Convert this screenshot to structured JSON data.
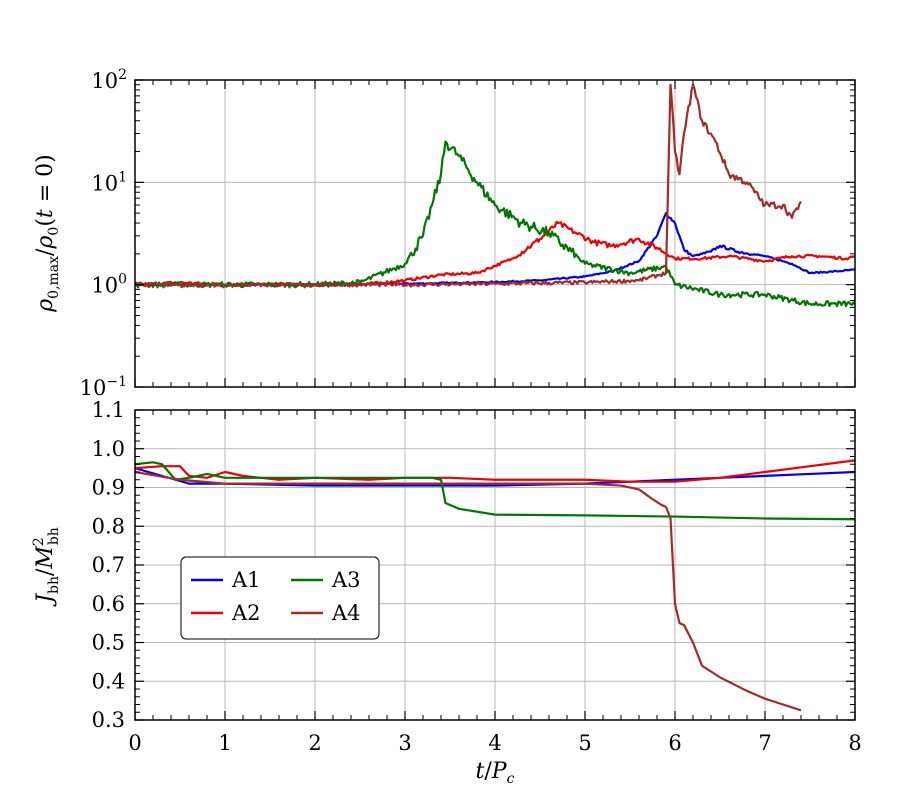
{
  "chart_data": [
    {
      "type": "line",
      "panel": "top",
      "yscale": "log",
      "xlim": [
        0,
        8
      ],
      "ylim": [
        0.1,
        100
      ],
      "grid": true,
      "ylabel": "ρ0,max/ρ0(t = 0)",
      "xticks": [
        0,
        1,
        2,
        3,
        4,
        5,
        6,
        7,
        8
      ],
      "yticks": [
        {
          "value": 0.1,
          "base": "10",
          "exp": "−1"
        },
        {
          "value": 1,
          "base": "10",
          "exp": "0"
        },
        {
          "value": 10,
          "base": "10",
          "exp": "1"
        },
        {
          "value": 100,
          "base": "10",
          "exp": "2"
        }
      ],
      "series": [
        {
          "name": "A1",
          "color": "#0000ee",
          "noise": 0.015,
          "x": [
            0,
            1,
            2,
            3,
            3.5,
            4,
            4.5,
            5,
            5.3,
            5.6,
            5.8,
            5.9,
            6.0,
            6.1,
            6.2,
            6.4,
            6.5,
            6.7,
            7.0,
            7.3,
            7.5,
            7.8,
            8.0
          ],
          "y": [
            1.0,
            1.0,
            1.0,
            1.02,
            1.04,
            1.06,
            1.1,
            1.2,
            1.35,
            1.7,
            3.0,
            5.0,
            4.0,
            2.2,
            1.9,
            2.1,
            2.4,
            2.1,
            1.9,
            1.6,
            1.3,
            1.35,
            1.4
          ]
        },
        {
          "name": "A2",
          "color": "#ee0000",
          "noise": 0.03,
          "x": [
            0,
            0.5,
            1,
            2,
            2.5,
            3.0,
            3.4,
            3.8,
            4.2,
            4.5,
            4.7,
            4.9,
            5.1,
            5.3,
            5.6,
            5.8,
            6.0,
            6.3,
            6.6,
            7.0,
            7.3,
            7.6,
            7.9,
            8.0
          ],
          "y": [
            1.0,
            1.05,
            1.0,
            1.0,
            1.0,
            1.1,
            1.25,
            1.3,
            1.8,
            2.8,
            4.0,
            3.2,
            2.6,
            2.4,
            2.8,
            2.3,
            1.8,
            1.8,
            1.9,
            1.7,
            1.9,
            1.9,
            1.8,
            1.9
          ]
        },
        {
          "name": "A3",
          "color": "#007700",
          "noise": 0.06,
          "x": [
            0,
            1,
            2,
            2.5,
            3.0,
            3.2,
            3.3,
            3.4,
            3.45,
            3.6,
            3.8,
            4.0,
            4.3,
            4.6,
            5.0,
            5.5,
            5.9,
            6.0,
            6.5,
            7.0,
            7.5,
            8.0
          ],
          "y": [
            1.0,
            1.0,
            1.0,
            1.05,
            1.6,
            3.0,
            6.0,
            12.0,
            25.0,
            18.0,
            10.0,
            6.0,
            4.0,
            3.2,
            1.6,
            1.3,
            1.5,
            1.0,
            0.8,
            0.8,
            0.65,
            0.65
          ]
        },
        {
          "name": "A4",
          "color": "#a52a2a",
          "noise": 0.04,
          "x": [
            0,
            1,
            2,
            3,
            4,
            5,
            5.6,
            5.9,
            5.95,
            6.0,
            6.05,
            6.1,
            6.2,
            6.3,
            6.45,
            6.6,
            6.8,
            7.0,
            7.2,
            7.3,
            7.4
          ],
          "y": [
            1.0,
            1.0,
            1.0,
            1.0,
            1.02,
            1.05,
            1.1,
            1.3,
            90.0,
            20.0,
            12.0,
            30.0,
            90.0,
            40.0,
            25.0,
            12.0,
            10.0,
            6.0,
            6.0,
            4.5,
            6.5
          ]
        }
      ]
    },
    {
      "type": "line",
      "panel": "bottom",
      "yscale": "linear",
      "xlim": [
        0,
        8
      ],
      "ylim": [
        0.3,
        1.1
      ],
      "grid": true,
      "xlabel": "t/Pc",
      "ylabel": "Jbh/M2bh",
      "xticks": [
        0,
        1,
        2,
        3,
        4,
        5,
        6,
        7,
        8
      ],
      "yticks": [
        0.3,
        0.4,
        0.5,
        0.6,
        0.7,
        0.8,
        0.9,
        1.0,
        1.1
      ],
      "legend": "lower-left",
      "series": [
        {
          "name": "A1",
          "color": "#0000ee",
          "x": [
            0,
            0.3,
            0.6,
            1,
            2,
            3,
            4,
            5,
            5.5,
            6,
            6.5,
            7,
            7.5,
            8
          ],
          "y": [
            0.95,
            0.93,
            0.91,
            0.91,
            0.905,
            0.905,
            0.905,
            0.91,
            0.915,
            0.92,
            0.925,
            0.93,
            0.935,
            0.94
          ]
        },
        {
          "name": "A2",
          "color": "#ee0000",
          "x": [
            0,
            0.3,
            0.5,
            0.6,
            0.8,
            1.0,
            1.2,
            1.6,
            2.0,
            2.6,
            3.0,
            3.5,
            4.0,
            5.0,
            5.5,
            6.0,
            6.5,
            7.0,
            7.5,
            8.0
          ],
          "y": [
            0.95,
            0.955,
            0.955,
            0.93,
            0.925,
            0.94,
            0.93,
            0.92,
            0.925,
            0.92,
            0.925,
            0.925,
            0.92,
            0.92,
            0.915,
            0.915,
            0.925,
            0.94,
            0.955,
            0.97
          ]
        },
        {
          "name": "A3",
          "color": "#007700",
          "x": [
            0,
            0.2,
            0.3,
            0.45,
            0.6,
            0.8,
            1.0,
            2.0,
            3.0,
            3.3,
            3.4,
            3.45,
            3.6,
            4.0,
            5.0,
            6.0,
            7.0,
            8.0
          ],
          "y": [
            0.96,
            0.965,
            0.96,
            0.92,
            0.925,
            0.935,
            0.925,
            0.925,
            0.925,
            0.925,
            0.92,
            0.86,
            0.845,
            0.83,
            0.828,
            0.825,
            0.82,
            0.818
          ]
        },
        {
          "name": "A4",
          "color": "#a52a2a",
          "x": [
            0,
            0.5,
            1,
            2,
            3,
            4,
            5.0,
            5.4,
            5.6,
            5.75,
            5.85,
            5.9,
            5.95,
            6.0,
            6.05,
            6.1,
            6.2,
            6.3,
            6.5,
            6.8,
            7.0,
            7.2,
            7.4
          ],
          "y": [
            0.94,
            0.92,
            0.91,
            0.91,
            0.91,
            0.91,
            0.91,
            0.905,
            0.895,
            0.87,
            0.855,
            0.85,
            0.82,
            0.6,
            0.55,
            0.545,
            0.5,
            0.44,
            0.41,
            0.375,
            0.355,
            0.34,
            0.325
          ]
        }
      ]
    }
  ]
}
